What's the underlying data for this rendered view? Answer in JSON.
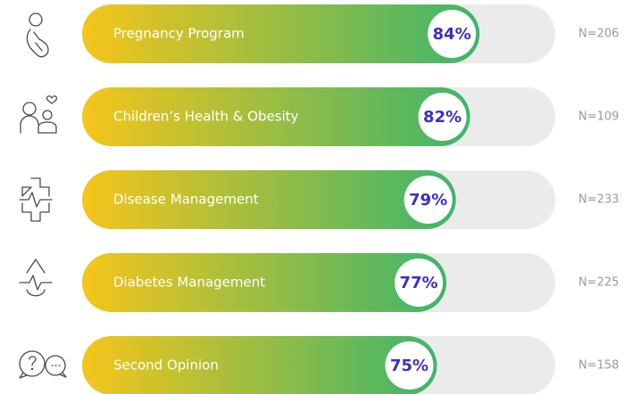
{
  "chart_data": {
    "type": "bar",
    "categories": [
      "Pregnancy Program",
      "Children’s Health & Obesity",
      "Disease Management",
      "Diabetes Management",
      "Second Opinion"
    ],
    "values": [
      84,
      82,
      79,
      77,
      75
    ],
    "value_labels": [
      "84%",
      "82%",
      "79%",
      "77%",
      "75%"
    ],
    "annotations": [
      "N=206",
      "N=109",
      "N=233",
      "N=225",
      "N=158"
    ],
    "xlim": [
      0,
      100
    ],
    "colors": [
      "#f6c51a",
      "#3db56c"
    ],
    "track_color": "#ebebeb"
  }
}
